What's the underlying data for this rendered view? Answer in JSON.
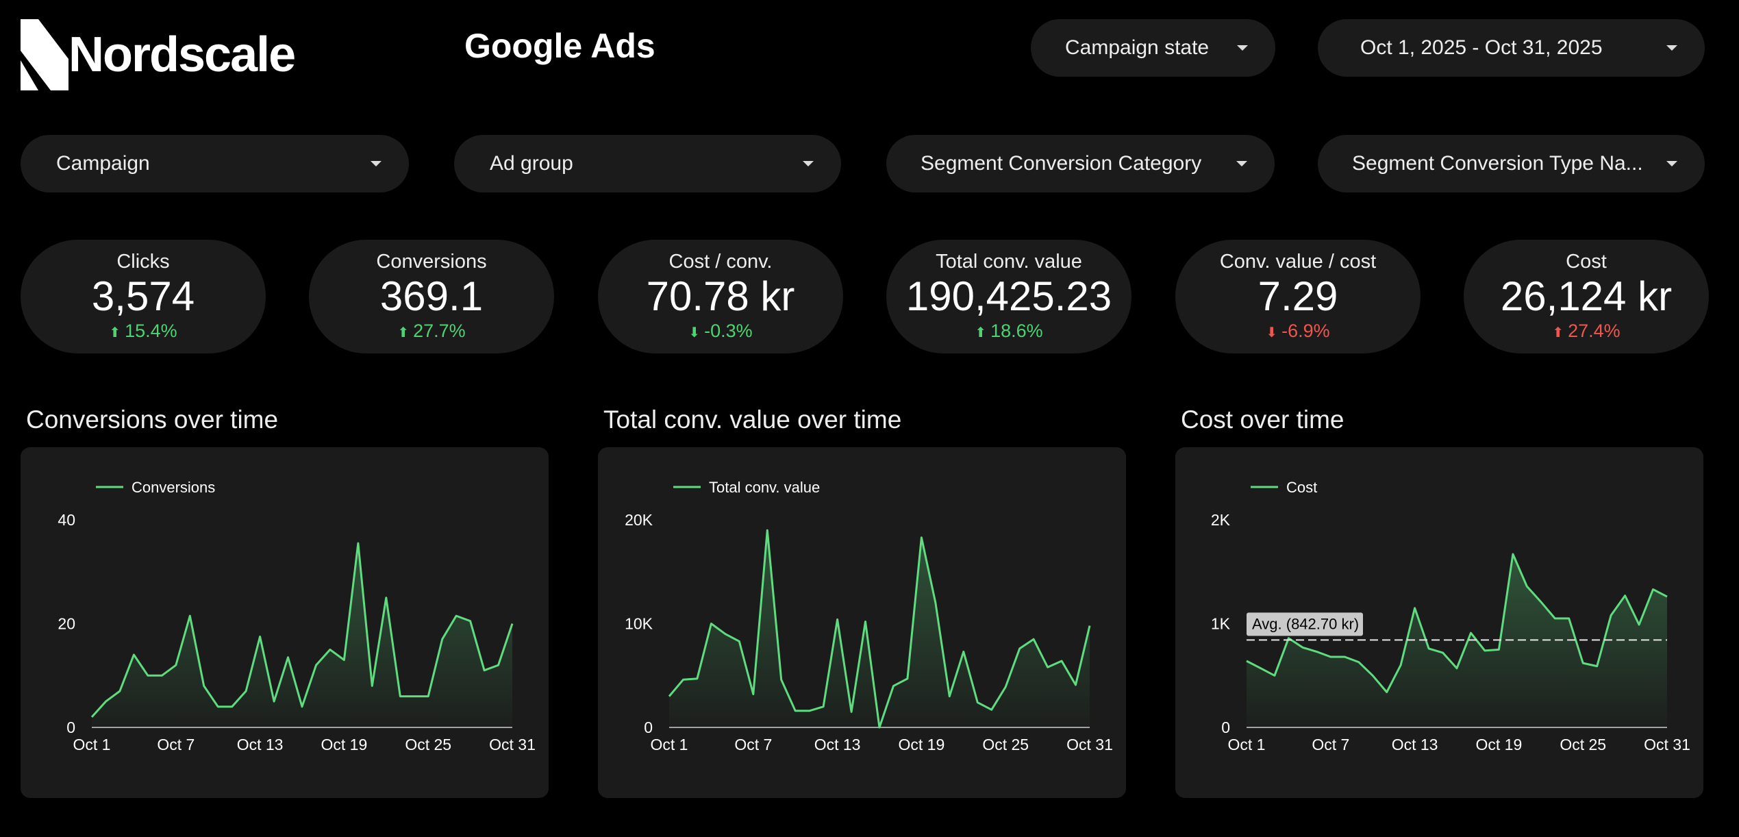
{
  "brand": {
    "name": "Nordscale"
  },
  "header": {
    "title": "Google Ads",
    "campaign_state_label": "Campaign state",
    "date_range_label": "Oct 1, 2025 - Oct 31, 2025"
  },
  "filters": [
    {
      "label": "Campaign"
    },
    {
      "label": "Ad group"
    },
    {
      "label": "Segment Conversion Category"
    },
    {
      "label": "Segment Conversion Type Na..."
    }
  ],
  "kpis": [
    {
      "label": "Clicks",
      "value": "3,574",
      "delta": "15.4%",
      "direction": "up",
      "status": "good"
    },
    {
      "label": "Conversions",
      "value": "369.1",
      "delta": "27.7%",
      "direction": "up",
      "status": "good"
    },
    {
      "label": "Cost / conv.",
      "value": "70.78 kr",
      "delta": "-0.3%",
      "direction": "down",
      "status": "good"
    },
    {
      "label": "Total conv. value",
      "value": "190,425.23",
      "delta": "18.6%",
      "direction": "up",
      "status": "good"
    },
    {
      "label": "Conv. value / cost",
      "value": "7.29",
      "delta": "-6.9%",
      "direction": "down",
      "status": "bad"
    },
    {
      "label": "Cost",
      "value": "26,124 kr",
      "delta": "27.4%",
      "direction": "up",
      "status": "bad"
    }
  ],
  "colors": {
    "good": "#4cd472",
    "bad": "#f0564e",
    "line": "#5fdc80",
    "panel": "#1b1b1b"
  },
  "chart_titles": [
    "Conversions over time",
    "Total conv. value over time",
    "Cost over time"
  ],
  "chart_data": [
    {
      "type": "area",
      "title": "Conversions over time",
      "legend": "Conversions",
      "x": [
        "Oct 1",
        "Oct 2",
        "Oct 3",
        "Oct 4",
        "Oct 5",
        "Oct 6",
        "Oct 7",
        "Oct 8",
        "Oct 9",
        "Oct 10",
        "Oct 11",
        "Oct 12",
        "Oct 13",
        "Oct 14",
        "Oct 15",
        "Oct 16",
        "Oct 17",
        "Oct 18",
        "Oct 19",
        "Oct 20",
        "Oct 21",
        "Oct 22",
        "Oct 23",
        "Oct 24",
        "Oct 25",
        "Oct 26",
        "Oct 27",
        "Oct 28",
        "Oct 29",
        "Oct 30",
        "Oct 31"
      ],
      "x_ticks": [
        "Oct 1",
        "Oct 7",
        "Oct 13",
        "Oct 19",
        "Oct 25",
        "Oct 31"
      ],
      "values": [
        2,
        5,
        7,
        14,
        10,
        10,
        12,
        21.5,
        8,
        4,
        4,
        7,
        17.5,
        5,
        13.5,
        4,
        12,
        15,
        13,
        35.5,
        8,
        25,
        6,
        6,
        6,
        17,
        21.5,
        20.5,
        11,
        12,
        20
      ],
      "ylim": [
        0,
        40
      ],
      "y_ticks": [
        "0",
        "20",
        "40"
      ],
      "avg_line": null
    },
    {
      "type": "area",
      "title": "Total conv. value over time",
      "legend": "Total conv. value",
      "x": [
        "Oct 1",
        "Oct 2",
        "Oct 3",
        "Oct 4",
        "Oct 5",
        "Oct 6",
        "Oct 7",
        "Oct 8",
        "Oct 9",
        "Oct 10",
        "Oct 11",
        "Oct 12",
        "Oct 13",
        "Oct 14",
        "Oct 15",
        "Oct 16",
        "Oct 17",
        "Oct 18",
        "Oct 19",
        "Oct 20",
        "Oct 21",
        "Oct 22",
        "Oct 23",
        "Oct 24",
        "Oct 25",
        "Oct 26",
        "Oct 27",
        "Oct 28",
        "Oct 29",
        "Oct 30",
        "Oct 31"
      ],
      "x_ticks": [
        "Oct 1",
        "Oct 7",
        "Oct 13",
        "Oct 19",
        "Oct 25",
        "Oct 31"
      ],
      "values": [
        3000,
        4600,
        4700,
        10000,
        9000,
        8300,
        3200,
        19000,
        4600,
        1600,
        1600,
        2000,
        10400,
        1500,
        10200,
        0,
        4000,
        4700,
        18300,
        12000,
        3000,
        7300,
        2400,
        1700,
        3900,
        7600,
        8500,
        5800,
        6400,
        4100,
        9800
      ],
      "ylim": [
        0,
        20000
      ],
      "y_ticks": [
        "0",
        "10K",
        "20K"
      ],
      "avg_line": null
    },
    {
      "type": "area",
      "title": "Cost over time",
      "legend": "Cost",
      "x": [
        "Oct 1",
        "Oct 2",
        "Oct 3",
        "Oct 4",
        "Oct 5",
        "Oct 6",
        "Oct 7",
        "Oct 8",
        "Oct 9",
        "Oct 10",
        "Oct 11",
        "Oct 12",
        "Oct 13",
        "Oct 14",
        "Oct 15",
        "Oct 16",
        "Oct 17",
        "Oct 18",
        "Oct 19",
        "Oct 20",
        "Oct 21",
        "Oct 22",
        "Oct 23",
        "Oct 24",
        "Oct 25",
        "Oct 26",
        "Oct 27",
        "Oct 28",
        "Oct 29",
        "Oct 30",
        "Oct 31"
      ],
      "x_ticks": [
        "Oct 1",
        "Oct 7",
        "Oct 13",
        "Oct 19",
        "Oct 25",
        "Oct 31"
      ],
      "values": [
        640,
        570,
        500,
        860,
        770,
        730,
        680,
        680,
        630,
        500,
        340,
        600,
        1150,
        760,
        720,
        570,
        910,
        740,
        750,
        1670,
        1360,
        1210,
        1050,
        1050,
        620,
        590,
        1080,
        1270,
        990,
        1330,
        1260
      ],
      "ylim": [
        0,
        2000
      ],
      "y_ticks": [
        "0",
        "1K",
        "2K"
      ],
      "avg_line": {
        "value": 842.7,
        "label": "Avg. (842.70 kr)"
      }
    }
  ]
}
